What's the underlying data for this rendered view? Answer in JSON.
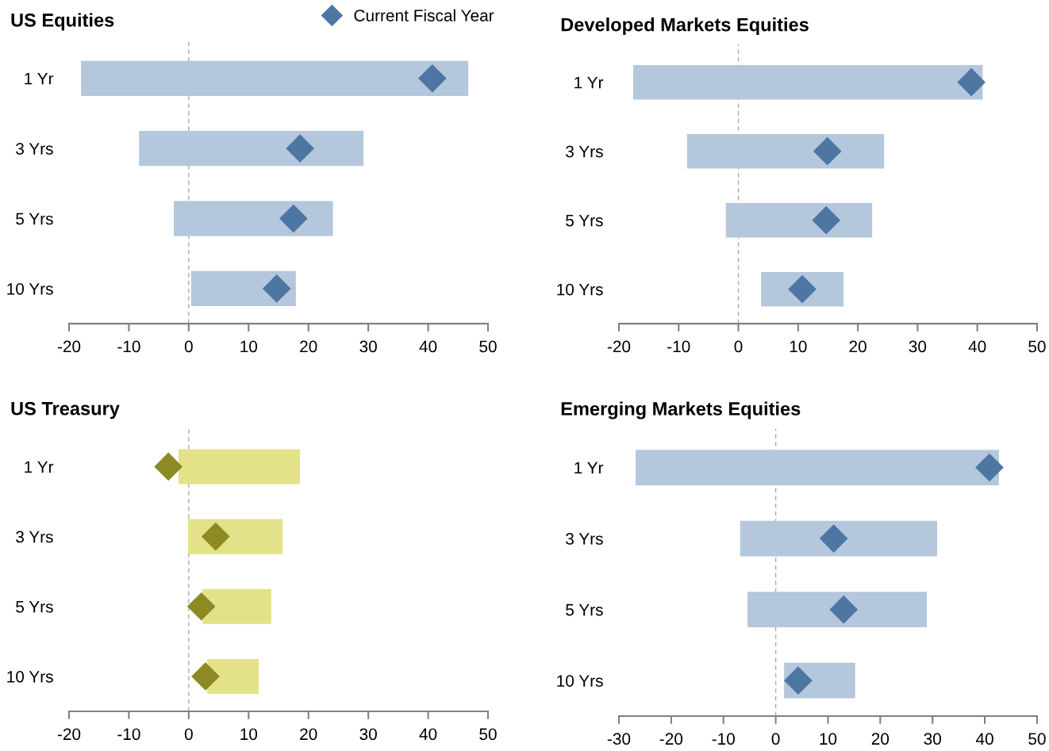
{
  "chart_data": [
    {
      "type": "bar",
      "orientation": "horizontal",
      "title": "US Equities",
      "categories": [
        "1 Yr",
        "3 Yrs",
        "5 Yrs",
        "10 Yrs"
      ],
      "xlim": [
        -20,
        50
      ],
      "xticks": [
        -20,
        -10,
        0,
        10,
        20,
        30,
        40,
        50
      ],
      "legend": "top right",
      "grid": false,
      "ref_lines": [
        {
          "axis": "x",
          "value": 0,
          "color": "#aaaaaa",
          "line_style": "dashed"
        }
      ],
      "series": [
        {
          "color": "#b4c7dc",
          "base": [
            -18.0,
            -8.3,
            -2.5,
            0.4
          ],
          "values": [
            64.7,
            37.5,
            26.6,
            17.5
          ]
        },
        {
          "type": "scatter",
          "name": "Current Fiscal Year",
          "marker": "diamond",
          "color": "#4e76a3",
          "values": [
            40.7,
            18.6,
            17.5,
            14.7
          ]
        }
      ]
    },
    {
      "type": "bar",
      "orientation": "horizontal",
      "title": "Developed Markets Equities",
      "categories": [
        "1 Yr",
        "3 Yrs",
        "5 Yrs",
        "10 Yrs"
      ],
      "xlim": [
        -20,
        50
      ],
      "xticks": [
        -20,
        -10,
        0,
        10,
        20,
        30,
        40,
        50
      ],
      "grid": false,
      "ref_lines": [
        {
          "axis": "x",
          "value": 0,
          "color": "#aaaaaa",
          "line_style": "dashed"
        }
      ],
      "series": [
        {
          "color": "#b4c7dc",
          "base": [
            -17.6,
            -8.6,
            -2.1,
            3.8
          ],
          "values": [
            58.5,
            33.0,
            24.5,
            13.8
          ]
        },
        {
          "type": "scatter",
          "marker": "diamond",
          "color": "#4e76a3",
          "values": [
            39.0,
            14.9,
            14.7,
            10.7
          ]
        }
      ]
    },
    {
      "type": "bar",
      "orientation": "horizontal",
      "title": "US Treasury",
      "categories": [
        "1 Yr",
        "3 Yrs",
        "5 Yrs",
        "10 Yrs"
      ],
      "xlim": [
        -20,
        50
      ],
      "xticks": [
        -20,
        -10,
        0,
        10,
        20,
        30,
        40,
        50
      ],
      "grid": false,
      "ref_lines": [
        {
          "axis": "x",
          "value": 0,
          "color": "#aaaaaa",
          "line_style": "dashed"
        }
      ],
      "series": [
        {
          "color": "#e3e289",
          "base": [
            -1.7,
            -0.1,
            2.3,
            3.1
          ],
          "values": [
            20.3,
            15.8,
            11.5,
            8.6
          ]
        },
        {
          "type": "scatter",
          "marker": "diamond",
          "color": "#8c8a22",
          "values": [
            -3.4,
            4.5,
            2.1,
            2.8
          ]
        }
      ]
    },
    {
      "type": "bar",
      "orientation": "horizontal",
      "title": "Emerging Markets Equities",
      "categories": [
        "1 Yr",
        "3 Yrs",
        "5 Yrs",
        "10 Yrs"
      ],
      "xlim": [
        -30,
        50
      ],
      "xticks": [
        -30,
        -20,
        -10,
        0,
        10,
        20,
        30,
        40,
        50
      ],
      "grid": false,
      "ref_lines": [
        {
          "axis": "x",
          "value": 0,
          "color": "#aaaaaa",
          "line_style": "dashed"
        }
      ],
      "series": [
        {
          "color": "#b4c7dc",
          "base": [
            -26.8,
            -6.8,
            -5.4,
            1.6
          ],
          "values": [
            69.5,
            37.7,
            34.3,
            13.6
          ]
        },
        {
          "type": "scatter",
          "marker": "diamond",
          "color": "#4e76a3",
          "values": [
            40.9,
            11.1,
            13.0,
            4.3
          ]
        }
      ]
    }
  ]
}
